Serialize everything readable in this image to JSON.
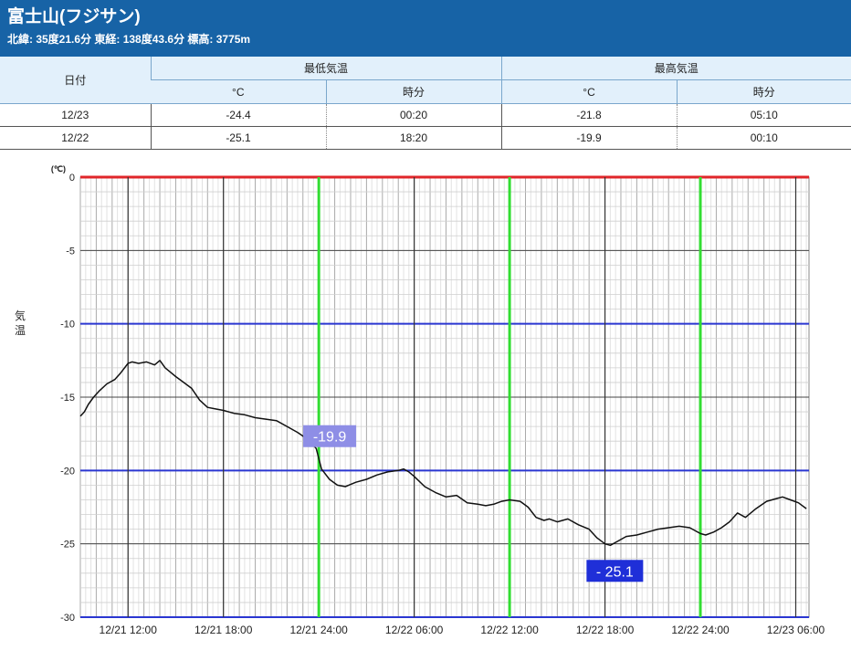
{
  "header": {
    "title": "富士山(フジサン)",
    "subtitle": "北緯: 35度21.6分 東経: 138度43.6分 標高: 3775m"
  },
  "table": {
    "date_header": "日付",
    "min_header": "最低気温",
    "max_header": "最高気温",
    "unit_header": "°C",
    "time_header": "時分",
    "rows": [
      {
        "date": "12/23",
        "min": "-24.4",
        "min_time": "00:20",
        "max": "-21.8",
        "max_time": "05:10"
      },
      {
        "date": "12/22",
        "min": "-25.1",
        "min_time": "18:20",
        "max": "-19.9",
        "max_time": "00:10"
      }
    ]
  },
  "colors": {
    "zero_line": "#e0262a",
    "major_line": "#2a36d1",
    "day_marker": "#33dd33",
    "series": "#111111",
    "max_label_bg": "#8e8ee6",
    "min_label_bg": "#1f2fd8"
  },
  "chart_data": {
    "type": "line",
    "ylabel": "気温",
    "yunit": "(℃)",
    "ylim": [
      -30,
      0
    ],
    "yticks": [
      "0",
      "-5",
      "-10",
      "-15",
      "-20",
      "-25",
      "-30"
    ],
    "xticks": [
      "12/21 12:00",
      "12/21 18:00",
      "12/21 24:00",
      "12/22 06:00",
      "12/22 12:00",
      "12/22 18:00",
      "12/22 24:00",
      "12/23 06:00"
    ],
    "xrange": [
      "12/21 09:00",
      "12/23 06:50"
    ],
    "series": [
      {
        "x": [
          "12/21 09:00",
          "12/21 09:15",
          "12/21 09:30",
          "12/21 09:50",
          "12/21 10:10",
          "12/21 10:40",
          "12/21 11:10",
          "12/21 11:30",
          "12/21 12:00",
          "12/21 12:15",
          "12/21 12:40",
          "12/21 13:10",
          "12/21 13:40",
          "12/21 14:00",
          "12/21 14:20",
          "12/21 14:40",
          "12/21 15:00",
          "12/21 15:30",
          "12/21 16:00",
          "12/21 16:30",
          "12/21 17:00",
          "12/21 17:30",
          "12/21 18:00",
          "12/21 18:40",
          "12/21 19:20",
          "12/21 20:00",
          "12/21 20:40",
          "12/21 21:20",
          "12/21 22:00",
          "12/21 22:40",
          "12/21 23:20",
          "12/21 23:50",
          "12/22 00:10",
          "12/22 00:40",
          "12/22 01:10",
          "12/22 01:40",
          "12/22 02:20",
          "12/22 03:00",
          "12/22 03:40",
          "12/22 04:20",
          "12/22 05:00",
          "12/22 05:20",
          "12/22 05:40",
          "12/22 06:00",
          "12/22 06:40",
          "12/22 07:20",
          "12/22 08:00",
          "12/22 08:40",
          "12/22 09:20",
          "12/22 10:00",
          "12/22 10:30",
          "12/22 11:00",
          "12/22 11:30",
          "12/22 12:00",
          "12/22 12:40",
          "12/22 13:10",
          "12/22 13:40",
          "12/22 14:10",
          "12/22 14:30",
          "12/22 15:00",
          "12/22 15:40",
          "12/22 16:20",
          "12/22 17:00",
          "12/22 17:30",
          "12/22 18:00",
          "12/22 18:20",
          "12/22 18:50",
          "12/22 19:20",
          "12/22 20:00",
          "12/22 20:40",
          "12/22 21:20",
          "12/22 22:00",
          "12/22 22:40",
          "12/22 23:20",
          "12/23 00:00",
          "12/23 00:20",
          "12/23 00:50",
          "12/23 01:20",
          "12/23 01:50",
          "12/23 02:20",
          "12/23 02:50",
          "12/23 03:30",
          "12/23 04:10",
          "12/23 04:50",
          "12/23 05:10",
          "12/23 05:40",
          "12/23 06:10",
          "12/23 06:40"
        ],
        "y": [
          -16.3,
          -16.0,
          -15.5,
          -15.0,
          -14.6,
          -14.1,
          -13.8,
          -13.4,
          -12.7,
          -12.6,
          -12.7,
          -12.6,
          -12.8,
          -12.5,
          -13.0,
          -13.3,
          -13.6,
          -14.0,
          -14.4,
          -15.2,
          -15.7,
          -15.8,
          -15.9,
          -16.1,
          -16.2,
          -16.4,
          -16.5,
          -16.6,
          -17.0,
          -17.4,
          -17.9,
          -18.5,
          -19.9,
          -20.6,
          -21.0,
          -21.1,
          -20.8,
          -20.6,
          -20.3,
          -20.1,
          -20.0,
          -19.9,
          -20.1,
          -20.4,
          -21.1,
          -21.5,
          -21.8,
          -21.7,
          -22.2,
          -22.3,
          -22.4,
          -22.3,
          -22.1,
          -22.0,
          -22.1,
          -22.5,
          -23.2,
          -23.4,
          -23.3,
          -23.5,
          -23.3,
          -23.7,
          -24.0,
          -24.6,
          -25.0,
          -25.1,
          -24.8,
          -24.5,
          -24.4,
          -24.2,
          -24.0,
          -23.9,
          -23.8,
          -23.9,
          -24.3,
          -24.4,
          -24.2,
          -23.9,
          -23.5,
          -22.9,
          -23.2,
          -22.6,
          -22.1,
          -21.9,
          -21.8,
          -22.0,
          -22.2,
          -22.6
        ]
      }
    ],
    "annotations": [
      {
        "text": "-19.9",
        "x": "12/22 00:10",
        "y": -19.9,
        "kind": "max"
      },
      {
        "text": "- 25.1",
        "x": "12/22 18:20",
        "y": -25.1,
        "kind": "min"
      }
    ]
  }
}
